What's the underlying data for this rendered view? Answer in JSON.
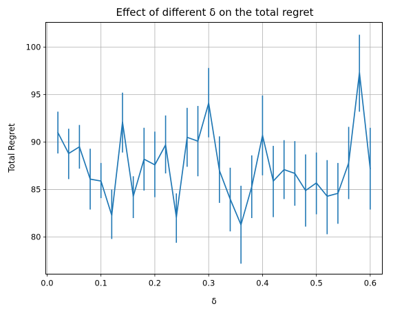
{
  "chart_data": {
    "type": "line",
    "title": "Effect of different δ on the total regret",
    "xlabel": "δ",
    "ylabel": "Total Regret",
    "xlim": [
      -0.0025,
      0.6225
    ],
    "ylim": [
      76.1,
      102.6
    ],
    "xticks": [
      0.0,
      0.1,
      0.2,
      0.3,
      0.4,
      0.5,
      0.6
    ],
    "xtick_labels": [
      "0.0",
      "0.1",
      "0.2",
      "0.3",
      "0.4",
      "0.5",
      "0.6"
    ],
    "yticks": [
      80,
      85,
      90,
      95,
      100
    ],
    "ytick_labels": [
      "80",
      "85",
      "90",
      "95",
      "100"
    ],
    "grid": true,
    "color": "#1f77b4",
    "series": [
      {
        "x": [
          0.02,
          0.04,
          0.06,
          0.08,
          0.1,
          0.12,
          0.14,
          0.16,
          0.18,
          0.2,
          0.22,
          0.24,
          0.26,
          0.28,
          0.3,
          0.32,
          0.34,
          0.36,
          0.38,
          0.4,
          0.42,
          0.44,
          0.46,
          0.48,
          0.5,
          0.52,
          0.54,
          0.56,
          0.58,
          0.6
        ],
        "values": [
          91.0,
          88.8,
          89.5,
          86.1,
          85.9,
          82.3,
          92.1,
          84.3,
          88.2,
          87.6,
          89.7,
          82.1,
          90.5,
          90.1,
          94.1,
          87.0,
          84.0,
          81.3,
          85.3,
          90.7,
          85.9,
          87.1,
          86.7,
          84.9,
          85.7,
          84.3,
          84.6,
          87.8,
          97.3,
          87.2
        ],
        "err_low": [
          88.8,
          86.1,
          87.2,
          82.9,
          84.1,
          79.8,
          88.9,
          82.0,
          84.9,
          84.2,
          86.7,
          79.4,
          87.4,
          86.4,
          90.5,
          83.6,
          80.6,
          77.2,
          82.0,
          86.5,
          82.1,
          84.0,
          83.3,
          81.1,
          82.4,
          80.3,
          81.4,
          84.0,
          93.2,
          82.9
        ],
        "err_high": [
          93.2,
          91.4,
          91.8,
          89.3,
          87.8,
          85.0,
          95.2,
          86.4,
          91.5,
          91.1,
          92.8,
          84.6,
          93.6,
          93.8,
          97.8,
          90.6,
          87.3,
          85.4,
          88.6,
          94.9,
          89.6,
          90.2,
          90.1,
          88.7,
          88.9,
          88.1,
          87.8,
          91.6,
          101.3,
          91.5
        ]
      }
    ]
  }
}
